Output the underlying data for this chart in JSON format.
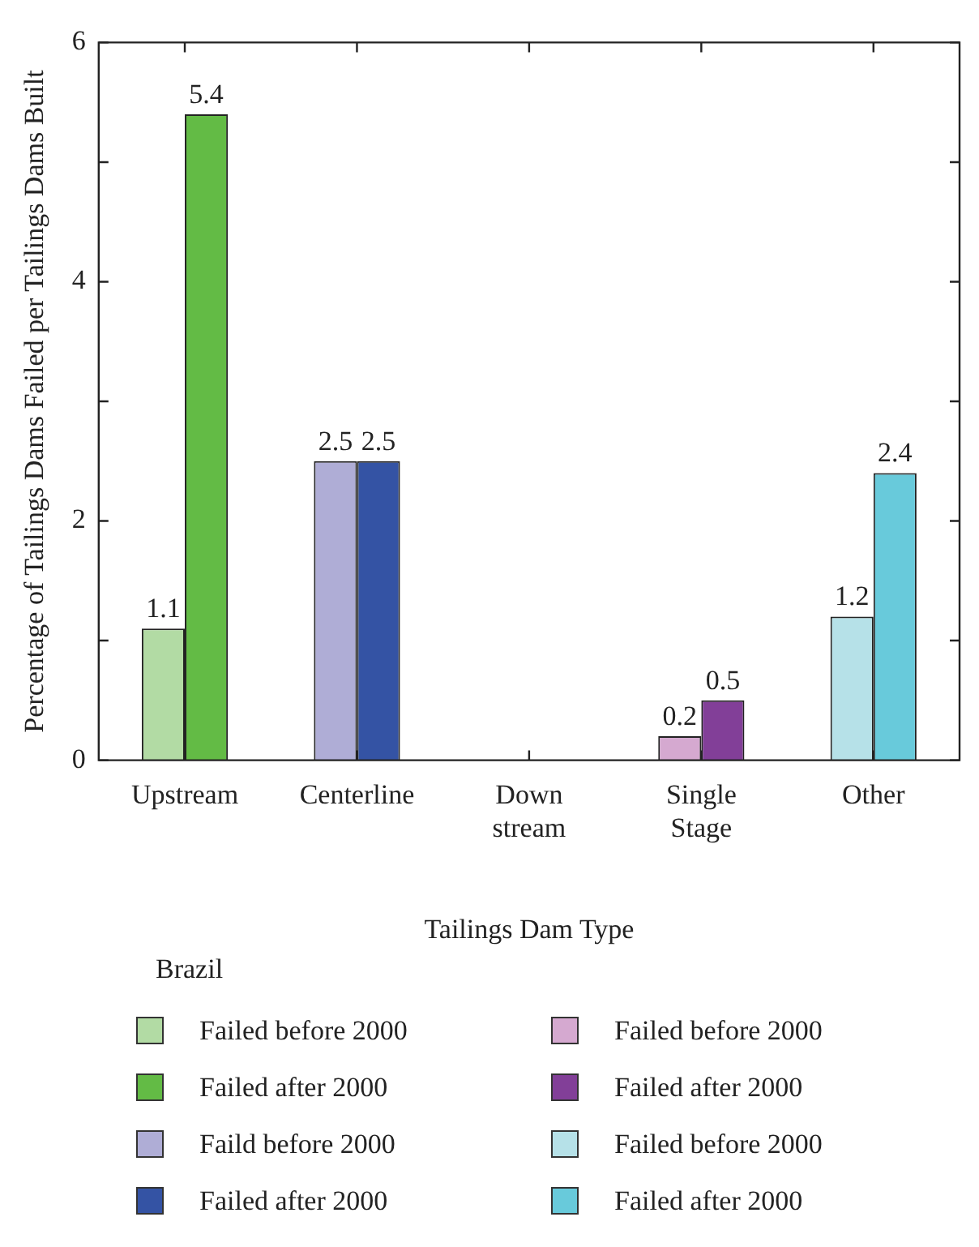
{
  "chart_data": {
    "type": "bar",
    "xlabel": "Tailings Dam Type",
    "ylabel": "Percentage of Tailings Dams Failed per Tailings Dams Built",
    "legend_title": "Brazil",
    "legend": "bottom",
    "data_labels": true,
    "categories": [
      "Upstream",
      "Centerline",
      "Down stream",
      "Single Stage",
      "Other"
    ],
    "ylim": [
      0,
      6
    ],
    "yticks": [
      0,
      {
        "value": 1,
        "label": null
      },
      2,
      {
        "value": 3,
        "label": null
      },
      4,
      {
        "value": 5,
        "label": null
      },
      6
    ],
    "series": [
      {
        "name": "Failed before 2000",
        "color": "#b2dba4",
        "values": [
          1.1,
          null,
          null,
          null,
          null
        ]
      },
      {
        "name": "Failed after 2000",
        "color": "#63bb45",
        "values": [
          5.4,
          null,
          null,
          null,
          null
        ]
      },
      {
        "name": "Faild before 2000",
        "color": "#afadd6",
        "values": [
          null,
          2.5,
          null,
          null,
          null
        ]
      },
      {
        "name": "Failed after 2000",
        "color": "#3453a4",
        "values": [
          null,
          2.5,
          null,
          null,
          null
        ]
      },
      {
        "name": "Failed before 2000",
        "color": "#d5a9d0",
        "values": [
          null,
          null,
          null,
          0.2,
          null
        ]
      },
      {
        "name": "Failed after 2000",
        "color": "#823f98",
        "values": [
          null,
          null,
          null,
          0.5,
          null
        ]
      },
      {
        "name": "Failed before 2000",
        "color": "#b6e1e8",
        "values": [
          null,
          null,
          null,
          null,
          1.2
        ]
      },
      {
        "name": "Failed after 2000",
        "color": "#68cadb",
        "values": [
          null,
          null,
          null,
          null,
          2.4
        ]
      }
    ]
  }
}
